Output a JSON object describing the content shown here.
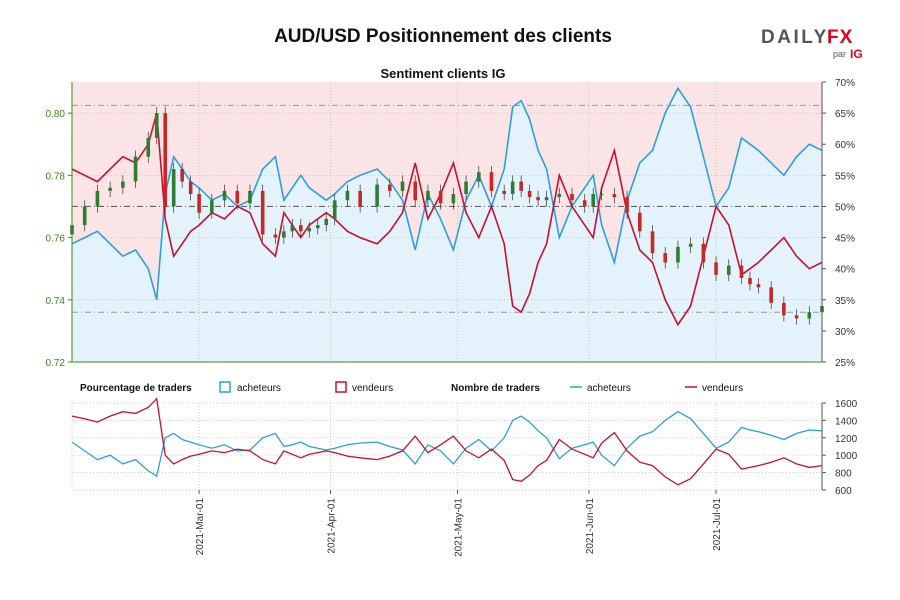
{
  "header": {
    "title": "AUD/USD Positionnement des clients",
    "logo_left": "DAILY",
    "logo_right": "FX",
    "logo_par": "par",
    "logo_ig": "IG"
  },
  "colors": {
    "bg_buy": "#e3f2fb",
    "bg_sell": "#fbe4e6",
    "line_buy": "#2b9fe0",
    "line_sell": "#c8102e",
    "candle_up": "#2e7d32",
    "candle_down": "#c62828",
    "price_axis": "#3a8a1a",
    "dash": "#888888"
  },
  "chart_data": [
    {
      "type": "line",
      "title": "Sentiment clients IG",
      "x_ticks": [
        "2021-Mar-01",
        "2021-Apr-01",
        "2021-May-01",
        "2021-Jun-01",
        "2021-Jul-01"
      ],
      "x_tick_days": [
        30,
        61,
        91,
        122,
        152
      ],
      "x_range": [
        0,
        177
      ],
      "price_axis": {
        "ticks": [
          "0.72",
          "0.74",
          "0.76",
          "0.78",
          "0.80"
        ],
        "range": [
          0.72,
          0.81
        ]
      },
      "pct_axis": {
        "ticks": [
          "25%",
          "30%",
          "35%",
          "40%",
          "45%",
          "50%",
          "55%",
          "60%",
          "65%",
          "70%"
        ],
        "range": [
          25,
          70
        ]
      },
      "reference_lines": {
        "high": 0.8025,
        "mid": 0.77,
        "low": 0.736
      },
      "series": [
        {
          "name": "acheteurs",
          "x": [
            0,
            3,
            6,
            9,
            12,
            15,
            18,
            20,
            22,
            24,
            26,
            28,
            30,
            33,
            36,
            39,
            42,
            45,
            48,
            50,
            52,
            54,
            56,
            58,
            60,
            62,
            65,
            68,
            72,
            75,
            78,
            81,
            84,
            87,
            90,
            93,
            96,
            99,
            102,
            104,
            106,
            108,
            110,
            112,
            115,
            118,
            121,
            123,
            125,
            128,
            131,
            134,
            137,
            140,
            143,
            146,
            149,
            152,
            155,
            158,
            160,
            162,
            165,
            168,
            171,
            174,
            177
          ],
          "values": [
            44,
            45,
            46,
            44,
            42,
            43,
            40,
            35,
            52,
            58,
            56,
            54,
            53,
            51,
            52,
            50,
            51,
            56,
            58,
            51,
            53,
            55,
            53,
            52,
            51,
            52,
            54,
            55,
            56,
            54,
            51,
            43,
            52,
            48,
            43,
            51,
            55,
            50,
            56,
            66,
            67,
            64,
            59,
            56,
            45,
            50,
            53,
            55,
            47,
            41,
            51,
            57,
            59,
            65,
            69,
            66,
            58,
            50,
            53,
            61,
            60,
            59,
            57,
            55,
            58,
            60,
            59
          ]
        },
        {
          "name": "vendeurs",
          "x": [
            0,
            3,
            6,
            9,
            12,
            15,
            18,
            20,
            22,
            24,
            26,
            28,
            30,
            33,
            36,
            39,
            42,
            45,
            48,
            50,
            52,
            54,
            56,
            58,
            60,
            62,
            65,
            68,
            72,
            75,
            78,
            81,
            84,
            87,
            90,
            93,
            96,
            99,
            102,
            104,
            106,
            108,
            110,
            112,
            115,
            118,
            121,
            123,
            125,
            128,
            131,
            134,
            137,
            140,
            143,
            146,
            149,
            152,
            155,
            158,
            160,
            162,
            165,
            168,
            171,
            174,
            177
          ],
          "values": [
            56,
            55,
            54,
            56,
            58,
            57,
            60,
            65,
            48,
            42,
            44,
            46,
            47,
            49,
            48,
            50,
            49,
            44,
            42,
            49,
            47,
            45,
            47,
            48,
            49,
            48,
            46,
            45,
            44,
            46,
            49,
            57,
            48,
            52,
            57,
            49,
            45,
            50,
            44,
            34,
            33,
            36,
            41,
            44,
            55,
            50,
            47,
            45,
            53,
            59,
            49,
            43,
            41,
            35,
            31,
            34,
            42,
            50,
            47,
            39,
            40,
            41,
            43,
            45,
            42,
            40,
            41
          ]
        }
      ],
      "candles": {
        "x": [
          0,
          3,
          6,
          9,
          12,
          15,
          18,
          20,
          22,
          24,
          26,
          28,
          30,
          33,
          36,
          39,
          42,
          45,
          48,
          50,
          52,
          54,
          56,
          58,
          60,
          62,
          65,
          68,
          72,
          75,
          78,
          81,
          84,
          87,
          90,
          93,
          96,
          99,
          102,
          104,
          106,
          108,
          110,
          112,
          115,
          118,
          121,
          123,
          125,
          128,
          131,
          134,
          137,
          140,
          143,
          146,
          149,
          152,
          155,
          158,
          160,
          162,
          165,
          168,
          171,
          174,
          177
        ],
        "close": [
          0.764,
          0.77,
          0.775,
          0.776,
          0.778,
          0.786,
          0.792,
          0.8,
          0.77,
          0.782,
          0.778,
          0.774,
          0.768,
          0.772,
          0.775,
          0.771,
          0.775,
          0.761,
          0.76,
          0.762,
          0.764,
          0.762,
          0.763,
          0.764,
          0.766,
          0.772,
          0.775,
          0.77,
          0.777,
          0.775,
          0.778,
          0.772,
          0.775,
          0.771,
          0.774,
          0.778,
          0.781,
          0.775,
          0.774,
          0.778,
          0.775,
          0.773,
          0.772,
          0.773,
          0.774,
          0.772,
          0.77,
          0.774,
          0.774,
          0.773,
          0.768,
          0.762,
          0.755,
          0.752,
          0.757,
          0.758,
          0.752,
          0.748,
          0.751,
          0.747,
          0.745,
          0.744,
          0.739,
          0.735,
          0.734,
          0.736,
          0.738
        ]
      }
    },
    {
      "type": "line",
      "title": "Nombre de traders",
      "y_axis": {
        "ticks": [
          "600",
          "800",
          "1000",
          "1200",
          "1400",
          "1600"
        ],
        "range": [
          600,
          1600
        ]
      },
      "series": [
        {
          "name": "acheteurs",
          "x": [
            0,
            3,
            6,
            9,
            12,
            15,
            18,
            20,
            22,
            24,
            26,
            28,
            30,
            33,
            36,
            39,
            42,
            45,
            48,
            50,
            52,
            54,
            56,
            58,
            60,
            62,
            65,
            68,
            72,
            75,
            78,
            81,
            84,
            87,
            90,
            93,
            96,
            99,
            102,
            104,
            106,
            108,
            110,
            112,
            115,
            118,
            121,
            123,
            125,
            128,
            131,
            134,
            137,
            140,
            143,
            146,
            149,
            152,
            155,
            158,
            160,
            162,
            165,
            168,
            171,
            174,
            177
          ],
          "values": [
            1150,
            1050,
            950,
            1000,
            900,
            950,
            820,
            760,
            1200,
            1250,
            1180,
            1150,
            1120,
            1080,
            1120,
            1050,
            1060,
            1200,
            1250,
            1100,
            1120,
            1150,
            1100,
            1080,
            1060,
            1080,
            1120,
            1140,
            1150,
            1100,
            1060,
            900,
            1120,
            1050,
            900,
            1080,
            1180,
            1050,
            1200,
            1400,
            1450,
            1380,
            1280,
            1200,
            960,
            1080,
            1120,
            1150,
            1000,
            880,
            1080,
            1220,
            1270,
            1400,
            1500,
            1420,
            1250,
            1080,
            1150,
            1320,
            1290,
            1270,
            1230,
            1180,
            1250,
            1290,
            1280
          ]
        },
        {
          "name": "vendeurs",
          "x": [
            0,
            3,
            6,
            9,
            12,
            15,
            18,
            20,
            22,
            24,
            26,
            28,
            30,
            33,
            36,
            39,
            42,
            45,
            48,
            50,
            52,
            54,
            56,
            58,
            60,
            62,
            65,
            68,
            72,
            75,
            78,
            81,
            84,
            87,
            90,
            93,
            96,
            99,
            102,
            104,
            106,
            108,
            110,
            112,
            115,
            118,
            121,
            123,
            125,
            128,
            131,
            134,
            137,
            140,
            143,
            146,
            149,
            152,
            155,
            158,
            160,
            162,
            165,
            168,
            171,
            174,
            177
          ],
          "values": [
            1450,
            1420,
            1380,
            1450,
            1500,
            1480,
            1550,
            1650,
            1000,
            900,
            950,
            990,
            1010,
            1050,
            1030,
            1070,
            1050,
            950,
            900,
            1050,
            1010,
            970,
            1010,
            1030,
            1050,
            1030,
            990,
            970,
            950,
            990,
            1050,
            1220,
            1030,
            1120,
            1220,
            1050,
            970,
            1070,
            940,
            720,
            700,
            770,
            880,
            940,
            1180,
            1070,
            1010,
            970,
            1140,
            1260,
            1050,
            920,
            880,
            750,
            660,
            730,
            900,
            1070,
            1010,
            840,
            860,
            880,
            920,
            970,
            900,
            860,
            880
          ]
        }
      ]
    }
  ],
  "legend": {
    "pct_label": "Pourcentage de traders",
    "count_label": "Nombre de traders",
    "buy": "acheteurs",
    "sell": "vendeurs"
  }
}
